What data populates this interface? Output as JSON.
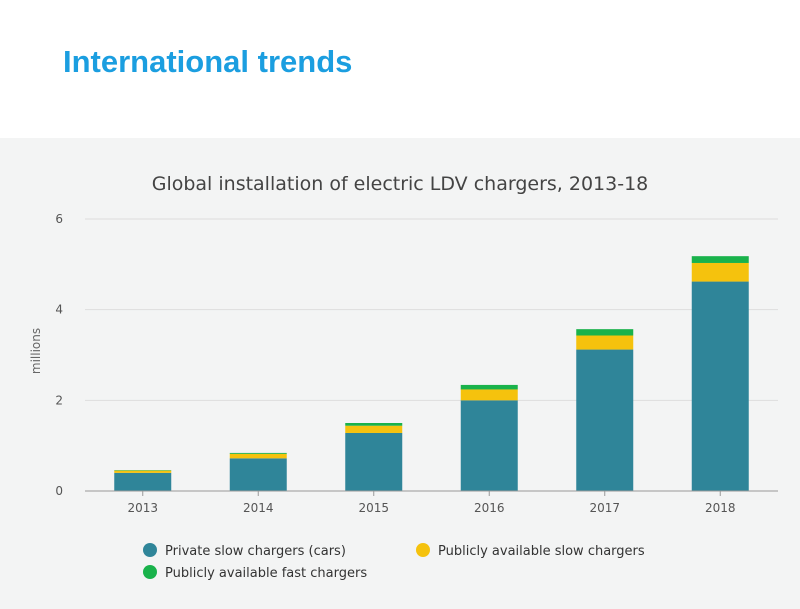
{
  "page": {
    "title": "International trends"
  },
  "colors": {
    "private_slow": "#2f8599",
    "public_slow": "#f5c20d",
    "public_fast": "#19b24b",
    "grid": "#dddddd",
    "title_blue": "#1b9ee0"
  },
  "chart_data": {
    "type": "bar",
    "stacked": true,
    "title": "Global installation of electric LDV chargers, 2013-18",
    "xlabel": "",
    "ylabel": "millions",
    "ylim": [
      0,
      6
    ],
    "yticks": [
      0,
      2,
      4,
      6
    ],
    "categories": [
      "2013",
      "2014",
      "2015",
      "2016",
      "2017",
      "2018"
    ],
    "series": [
      {
        "name": "Private slow chargers (cars)",
        "color": "#2f8599",
        "values": [
          0.4,
          0.72,
          1.28,
          2.0,
          3.12,
          4.62
        ]
      },
      {
        "name": "Publicly available slow chargers",
        "color": "#f5c20d",
        "values": [
          0.05,
          0.1,
          0.16,
          0.24,
          0.31,
          0.41
        ]
      },
      {
        "name": "Publicly available fast chargers",
        "color": "#19b24b",
        "values": [
          0.01,
          0.02,
          0.06,
          0.1,
          0.14,
          0.15
        ]
      }
    ],
    "legend": "bottom"
  }
}
